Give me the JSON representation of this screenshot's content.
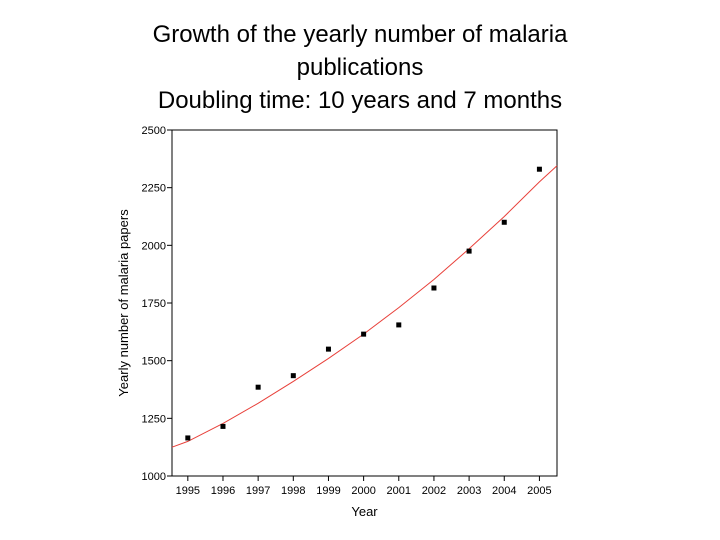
{
  "slide": {
    "title_lines": [
      "Growth of the yearly number of malaria",
      "publications",
      "Doubling time: 10 years and 7 months"
    ]
  },
  "chart_data": {
    "type": "scatter",
    "xlabel": "Year",
    "ylabel": "Yearly number of malaria papers",
    "x": [
      1995,
      1996,
      1997,
      1998,
      1999,
      2000,
      2001,
      2002,
      2003,
      2004,
      2005
    ],
    "xticks": [
      1995,
      1996,
      1997,
      1998,
      1999,
      2000,
      2001,
      2002,
      2003,
      2004,
      2005
    ],
    "yticks": [
      1000,
      1250,
      1500,
      1750,
      2000,
      2250,
      2500
    ],
    "xlim": [
      1994.55,
      2005.5
    ],
    "ylim": [
      1000,
      2500
    ],
    "series": [
      {
        "type": "scatter",
        "color": "#000000",
        "values": [
          1165,
          1215,
          1385,
          1435,
          1550,
          1615,
          1655,
          1815,
          1975,
          2100,
          2330
        ]
      },
      {
        "type": "fit-line",
        "color": "#e8403a",
        "x": [
          1994.55,
          1995,
          1996,
          1997,
          1998,
          1999,
          2000,
          2001,
          2002,
          2003,
          2004,
          2005,
          2005.5
        ],
        "values": [
          1125,
          1150,
          1228,
          1315,
          1410,
          1510,
          1615,
          1730,
          1852,
          1985,
          2125,
          2275,
          2345
        ]
      }
    ]
  }
}
